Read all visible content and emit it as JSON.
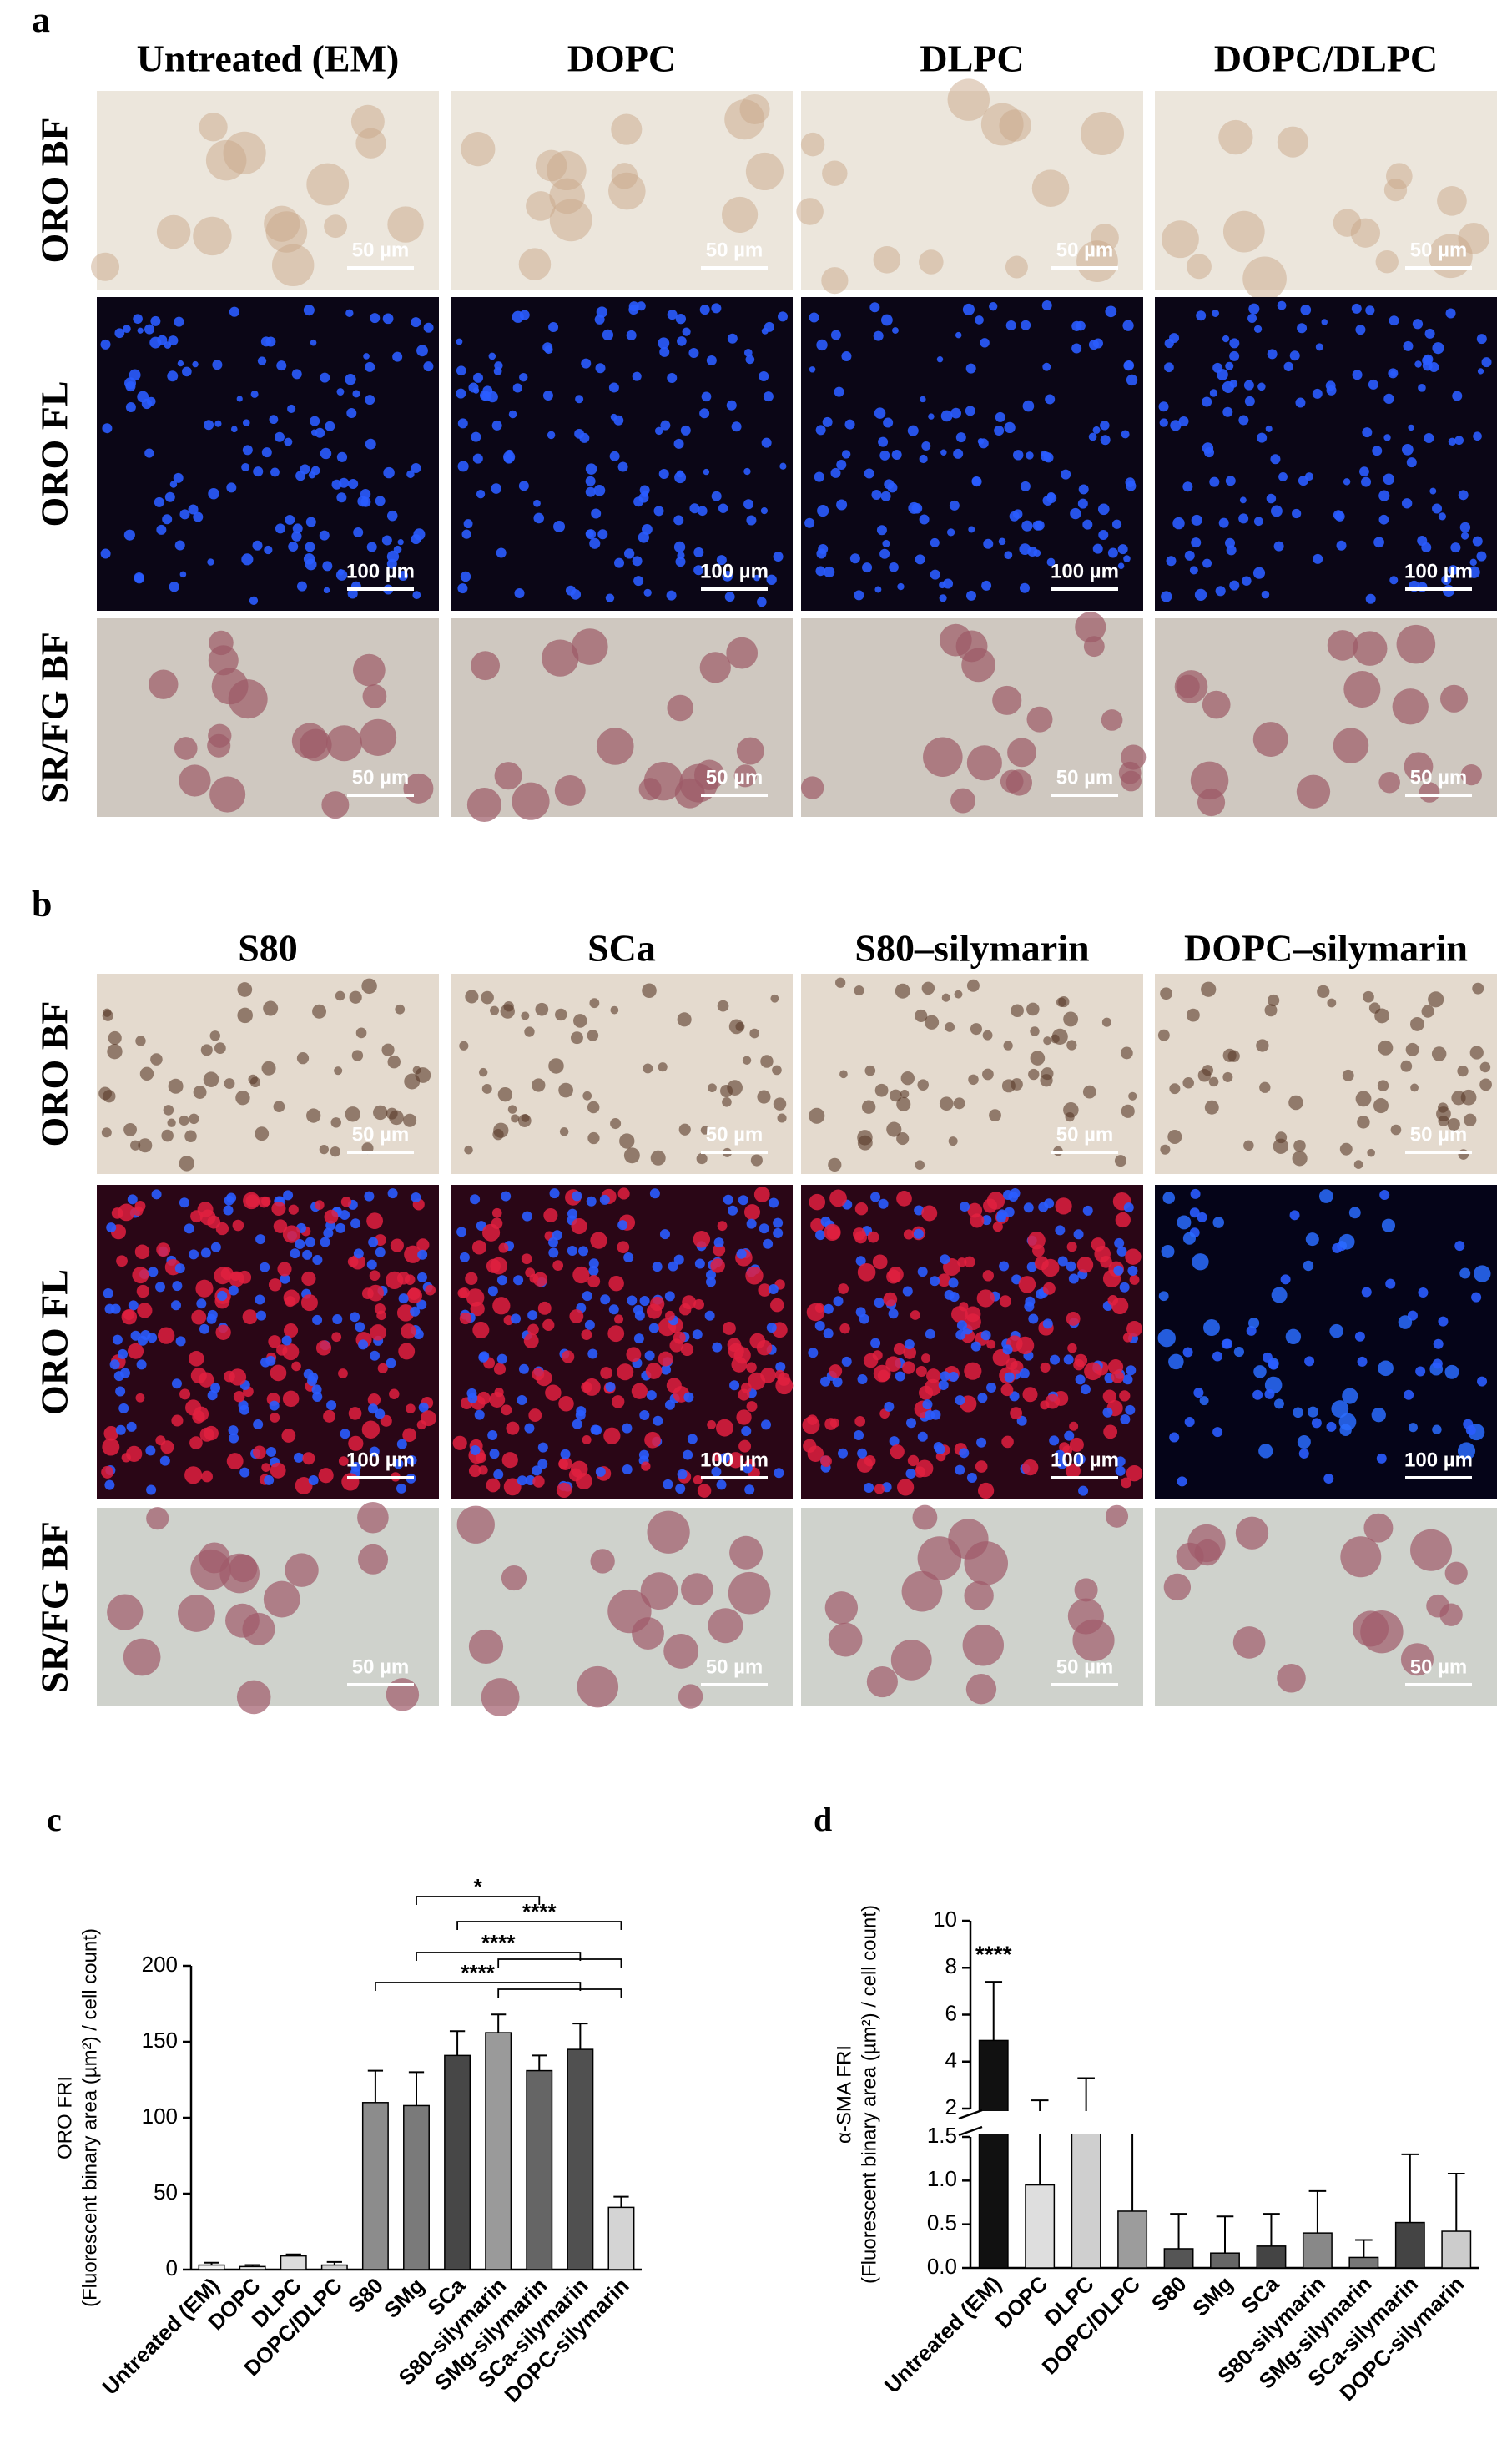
{
  "panels": [
    {
      "label": "a",
      "columns": [
        "Untreated (EM)",
        "DOPC",
        "DLPC",
        "DOPC/DLPC"
      ],
      "rows": [
        "ORO BF",
        "ORO FL",
        "SR/FG BF"
      ],
      "scale_bars": [
        "50 µm",
        "100 µm",
        "50 µm"
      ]
    },
    {
      "label": "b",
      "columns": [
        "S80",
        "SCa",
        "S80–silymarin",
        "DOPC–silymarin"
      ],
      "rows": [
        "ORO BF",
        "ORO FL",
        "SR/FG BF"
      ],
      "scale_bars": [
        "50 µm",
        "100 µm",
        "50 µm"
      ]
    }
  ],
  "chart_data": [
    {
      "type": "bar",
      "label": "c",
      "ylabel": "ORO FRI",
      "ylabel2": "(Fluorescent binary area (µm²) / cell count)",
      "categories": [
        "Untreated (EM)",
        "DOPC",
        "DLPC",
        "DOPC/DLPC",
        "S80",
        "SMg",
        "SCa",
        "S80-silymarin",
        "SMg-silymarin",
        "SCa-silymarin",
        "DOPC-silymarin"
      ],
      "values": [
        3,
        2,
        9,
        3,
        110,
        108,
        141,
        156,
        131,
        145,
        41
      ],
      "errors": [
        1.5,
        1,
        1,
        2,
        21,
        22,
        16,
        12,
        10,
        17,
        7
      ],
      "colors": [
        "#f2f2f2",
        "#e6e6e6",
        "#dcdcdc",
        "#d0d0d0",
        "#8c8c8c",
        "#7a7a7a",
        "#474747",
        "#9a9a9a",
        "#656565",
        "#505050",
        "#d4d4d4"
      ],
      "ylim": [
        0,
        200
      ],
      "yticks": [
        0,
        50,
        100,
        150,
        200
      ],
      "annotations": [
        "*",
        "****",
        "****",
        "****"
      ]
    },
    {
      "type": "broken_bar",
      "label": "d",
      "ylabel": "α-SMA FRI",
      "ylabel2": "(Fluorescent binary area (µm²) / cell count)",
      "categories": [
        "Untreated (EM)",
        "DOPC",
        "DLPC",
        "DOPC/DLPC",
        "S80",
        "SMg",
        "SCa",
        "S80-silymarin",
        "SMg-silymarin",
        "SCa-silymarin",
        "DOPC-silymarin"
      ],
      "values": [
        4.9,
        0.95,
        1.6,
        0.65,
        0.22,
        0.17,
        0.25,
        0.4,
        0.12,
        0.52,
        0.42
      ],
      "errors": [
        2.5,
        1.4,
        1.7,
        1.1,
        0.4,
        0.42,
        0.37,
        0.48,
        0.2,
        0.78,
        0.66
      ],
      "colors": [
        "#111111",
        "#dedede",
        "#cfcfcf",
        "#9c9c9c",
        "#555555",
        "#666666",
        "#444444",
        "#888888",
        "#777777",
        "#444444",
        "#cccccc"
      ],
      "ylim": [
        2,
        10
      ],
      "yticks": [
        2,
        4,
        6,
        8,
        10
      ],
      "y2lim": [
        0,
        1.5
      ],
      "y2ticks": [
        {
          "value": 0,
          "label": "0.0"
        },
        0.5,
        {
          "value": 1,
          "label": "1.0"
        },
        1.5
      ],
      "annotations": [
        "****"
      ]
    }
  ]
}
